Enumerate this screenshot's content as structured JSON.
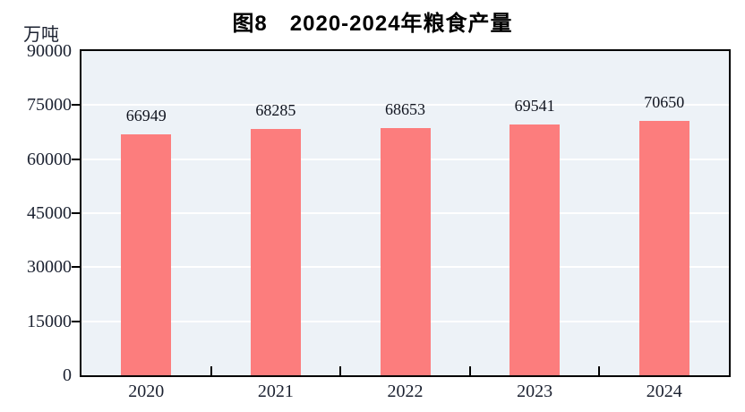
{
  "title": "图8　2020-2024年粮食产量",
  "unit_label": "万吨",
  "chart_data": {
    "type": "bar",
    "title": "图8 2020-2024年粮食产量",
    "categories": [
      "2020",
      "2021",
      "2022",
      "2023",
      "2024"
    ],
    "values": [
      66949,
      68285,
      68653,
      69541,
      70650
    ],
    "xlabel": "",
    "ylabel": "万吨",
    "ylim": [
      0,
      90000
    ],
    "yticks": [
      0,
      15000,
      30000,
      45000,
      60000,
      75000,
      90000
    ],
    "grid": true,
    "legend_position": "none",
    "colors": {
      "bar": "#fc7d7d",
      "plot_background": "#edf2f7",
      "gridline": "#ffffff",
      "axis_border": "#000000",
      "text": "#1b2130"
    }
  }
}
